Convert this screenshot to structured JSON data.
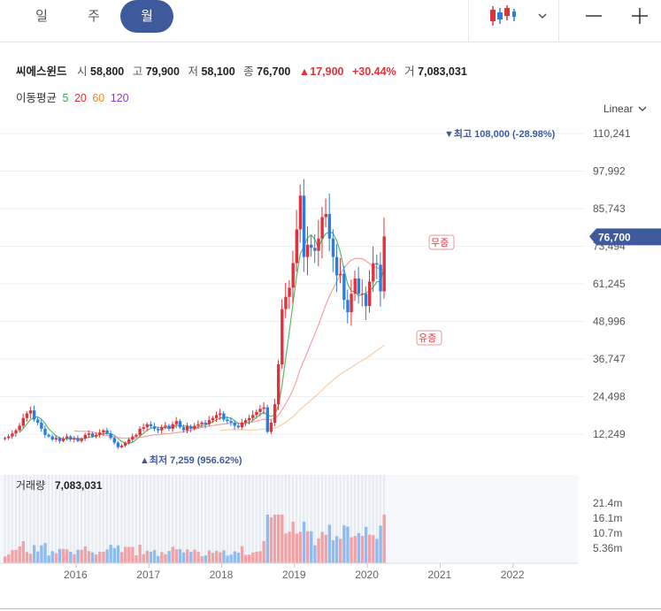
{
  "tabs": [
    {
      "label": "일",
      "active": false
    },
    {
      "label": "주",
      "active": false
    },
    {
      "label": "월",
      "active": true
    }
  ],
  "toolbar": {
    "chart_type_icon": "candlestick-icon",
    "minus_icon": "minus-icon",
    "plus_icon": "plus-icon"
  },
  "stock": {
    "name": "씨에스윈드",
    "open_label": "시",
    "open": "58,800",
    "high_label": "고",
    "high": "79,900",
    "low_label": "저",
    "low": "58,100",
    "close_label": "종",
    "close": "76,700",
    "change": "▲17,900",
    "change_pct": "+30.44%",
    "volume_label": "거",
    "volume": "7,083,031"
  },
  "moving_average": {
    "label": "이동평균",
    "periods": [
      {
        "value": "5",
        "color": "#2eaa4a"
      },
      {
        "value": "20",
        "color": "#e0323a"
      },
      {
        "value": "60",
        "color": "#f08a24"
      },
      {
        "value": "120",
        "color": "#8a3fc7"
      }
    ]
  },
  "scale_selector": "Linear",
  "colors": {
    "up": "#e0323a",
    "down": "#2a7de1",
    "accent": "#3e5a9c",
    "vol_up": "#f0a3a6",
    "vol_down": "#8fbcef"
  },
  "chart_data": {
    "type": "candlestick",
    "y_ticks": [
      "110,241",
      "97,992",
      "85,743",
      "73,494",
      "61,245",
      "48,996",
      "36,747",
      "24,498",
      "12,249"
    ],
    "ylim": [
      0,
      118000
    ],
    "x_ticks": [
      "2016",
      "2017",
      "2018",
      "2019",
      "2020",
      "2021",
      "2022"
    ],
    "current_price_label": "76,700",
    "current_price": 76700,
    "max_annotation": "▼최고 108,000 (-28.98%)",
    "min_annotation": "▲최저 7,259 (956.62%)",
    "event_labels": [
      "무증",
      "유증"
    ],
    "volume_title": "거래량",
    "volume_value": "7,083,031",
    "volume_ticks": [
      "21.4m",
      "16.1m",
      "10.7m",
      "5.36m"
    ],
    "monthly_closes": [
      11000,
      11500,
      12500,
      13500,
      15000,
      17500,
      19000,
      20000,
      17000,
      16000,
      14000,
      12000,
      11500,
      10500,
      11000,
      10000,
      10800,
      11500,
      10500,
      11000,
      10000,
      10800,
      12000,
      12500,
      11500,
      12000,
      12800,
      13500,
      12500,
      11000,
      9500,
      8000,
      8500,
      9500,
      10500,
      11500,
      12000,
      14000,
      14500,
      15500,
      14800,
      14000,
      13500,
      14500,
      15000,
      14000,
      15500,
      16500,
      14500,
      13500,
      14800,
      14000,
      15000,
      15500,
      16000,
      15500,
      16800,
      17500,
      18500,
      19000,
      17000,
      16500,
      16000,
      15000,
      14500,
      16000,
      16800,
      17500,
      18500,
      19500,
      20500,
      21000,
      13000,
      16000,
      22000,
      35000,
      53000,
      57000,
      60000,
      68000,
      79000,
      90000,
      70000,
      74000,
      73000,
      72000,
      76000,
      83000,
      84000,
      76000,
      70000,
      64000,
      64500,
      56000,
      52000,
      58000,
      63000,
      58000,
      58000,
      54000,
      62000,
      68000,
      67500,
      58800,
      76700
    ]
  }
}
